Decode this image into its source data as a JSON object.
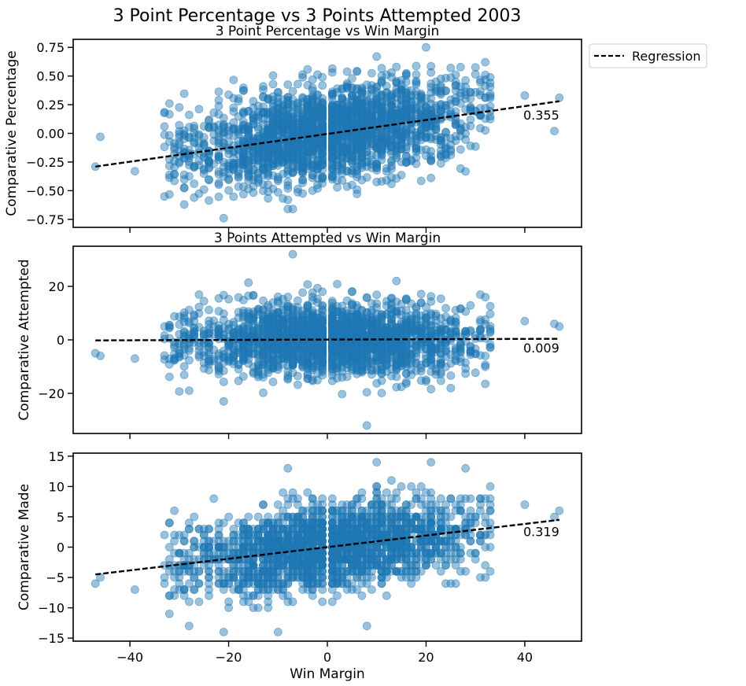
{
  "suptitle": "3 Point Percentage vs 3 Points Attempted 2003",
  "legend": {
    "label": "Regression",
    "placement": "outside-top-right"
  },
  "colors": {
    "points": "#1f77b4",
    "regression": "#000000"
  },
  "chart_data": [
    {
      "type": "scatter",
      "title": "3 Point Percentage vs Win Margin",
      "xlabel": "",
      "ylabel": "Comparative Percentage",
      "xlim": [
        -51.5,
        51.5
      ],
      "ylim": [
        -0.82,
        0.82
      ],
      "yticks": [
        0.75,
        0.5,
        0.25,
        0.0,
        -0.25,
        -0.5,
        -0.75
      ],
      "ytick_labels": [
        "0.75",
        "0.50",
        "0.25",
        "0.00",
        "−0.25",
        "−0.50",
        "−0.75"
      ],
      "xtick_labels_visible": false,
      "regression": {
        "x": [
          -47,
          47
        ],
        "y": [
          -0.29,
          0.28
        ]
      },
      "annotation": {
        "text": "0.355",
        "x": 47,
        "y": 0.16
      },
      "spread": {
        "xstd": 14,
        "ystd": 0.2,
        "slope": 0.0061,
        "n": 2300
      },
      "outliers": [
        {
          "x": -47,
          "y": -0.29
        },
        {
          "x": -46,
          "y": -0.03
        },
        {
          "x": -39,
          "y": -0.33
        },
        {
          "x": -33,
          "y": 0.06
        },
        {
          "x": -33,
          "y": -0.55
        },
        {
          "x": -32,
          "y": 0.26
        },
        {
          "x": -29,
          "y": -0.62
        },
        {
          "x": -21,
          "y": -0.74
        },
        {
          "x": 10,
          "y": 0.67
        },
        {
          "x": 20,
          "y": 0.75
        },
        {
          "x": 40,
          "y": 0.33
        },
        {
          "x": 46,
          "y": 0.02
        },
        {
          "x": 47,
          "y": 0.31
        },
        {
          "x": 33,
          "y": 0.44
        },
        {
          "x": 32,
          "y": 0.62
        },
        {
          "x": -8,
          "y": -0.66
        },
        {
          "x": -7,
          "y": -0.66
        }
      ]
    },
    {
      "type": "scatter",
      "title": "3 Points Attempted vs Win Margin",
      "xlabel": "",
      "ylabel": "Comparative Attempted",
      "xlim": [
        -51.5,
        51.5
      ],
      "ylim": [
        -35,
        35
      ],
      "yticks": [
        20,
        0,
        -20
      ],
      "ytick_labels": [
        "20",
        "0",
        "−20"
      ],
      "xtick_labels_visible": false,
      "regression": {
        "x": [
          -47,
          47
        ],
        "y": [
          -0.2,
          0.4
        ]
      },
      "annotation": {
        "text": "0.009",
        "x": 47,
        "y": -3
      },
      "spread": {
        "xstd": 14,
        "ystd": 6.5,
        "slope": 0.006,
        "n": 2300
      },
      "outliers": [
        {
          "x": -47,
          "y": -5
        },
        {
          "x": -46,
          "y": -6
        },
        {
          "x": -39,
          "y": -7
        },
        {
          "x": -7,
          "y": 32
        },
        {
          "x": 8,
          "y": -32
        },
        {
          "x": 40,
          "y": 7
        },
        {
          "x": 46,
          "y": 6
        },
        {
          "x": 47,
          "y": 5
        },
        {
          "x": -33,
          "y": 5
        },
        {
          "x": -28,
          "y": -19
        },
        {
          "x": -21,
          "y": -23
        },
        {
          "x": 14,
          "y": 22
        }
      ]
    },
    {
      "type": "scatter",
      "title": "",
      "xlabel": "Win Margin",
      "ylabel": "Comparative Made",
      "xlim": [
        -51.5,
        51.5
      ],
      "ylim": [
        -15.5,
        15.5
      ],
      "yticks": [
        15,
        10,
        5,
        0,
        -5,
        -10,
        -15
      ],
      "ytick_labels": [
        "15",
        "10",
        "5",
        "0",
        "−5",
        "−10",
        "−15"
      ],
      "xticks": [
        -40,
        -20,
        0,
        20,
        40
      ],
      "xtick_labels": [
        "−40",
        "−20",
        "0",
        "20",
        "40"
      ],
      "xtick_labels_visible": true,
      "integer_y": true,
      "regression": {
        "x": [
          -47,
          47
        ],
        "y": [
          -4.5,
          4.5
        ]
      },
      "annotation": {
        "text": "0.319",
        "x": 47,
        "y": 2.6
      },
      "spread": {
        "xstd": 14,
        "ystd": 3.3,
        "slope": 0.096,
        "n": 2300
      },
      "outliers": [
        {
          "x": -47,
          "y": -6
        },
        {
          "x": -46,
          "y": -5
        },
        {
          "x": -39,
          "y": -7
        },
        {
          "x": -32,
          "y": 4
        },
        {
          "x": -28,
          "y": -13
        },
        {
          "x": -21,
          "y": -14
        },
        {
          "x": -10,
          "y": -14
        },
        {
          "x": -8,
          "y": 13
        },
        {
          "x": 10,
          "y": 14
        },
        {
          "x": 21,
          "y": 14
        },
        {
          "x": 28,
          "y": 13
        },
        {
          "x": 8,
          "y": -13
        },
        {
          "x": 40,
          "y": 7
        },
        {
          "x": 46,
          "y": 5
        },
        {
          "x": 47,
          "y": 6
        },
        {
          "x": 33,
          "y": -4
        }
      ]
    }
  ]
}
